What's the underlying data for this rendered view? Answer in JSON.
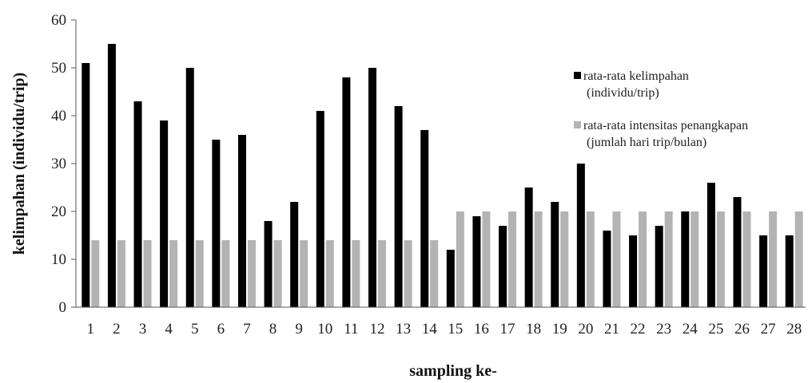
{
  "chart_data": {
    "type": "bar",
    "xlabel": "sampling ke-",
    "ylabel": "kelimpahan (individu/trip)",
    "ylim": [
      0,
      60
    ],
    "yticks": [
      0,
      10,
      20,
      30,
      40,
      50,
      60
    ],
    "grid": false,
    "legend_position": "right",
    "categories": [
      "1",
      "2",
      "3",
      "4",
      "5",
      "6",
      "7",
      "8",
      "9",
      "10",
      "11",
      "12",
      "13",
      "14",
      "15",
      "16",
      "17",
      "18",
      "19",
      "20",
      "21",
      "22",
      "23",
      "24",
      "25",
      "26",
      "27",
      "28"
    ],
    "series": [
      {
        "name": "rata-rata kelimpahan (individu/trip)",
        "legend_lines": [
          "rata-rata kelimpahan",
          "(individu/trip)"
        ],
        "color": "#000000",
        "values": [
          51,
          55,
          43,
          39,
          50,
          35,
          36,
          18,
          22,
          41,
          48,
          50,
          42,
          37,
          12,
          19,
          17,
          25,
          22,
          30,
          16,
          15,
          17,
          20,
          26,
          23,
          15,
          15
        ]
      },
      {
        "name": "rata-rata intensitas penangkapan (jumlah hari trip/bulan)",
        "legend_lines": [
          "rata-rata intensitas penangkapan",
          "(jumlah hari trip/bulan)"
        ],
        "color": "#b3b3b3",
        "values": [
          14,
          14,
          14,
          14,
          14,
          14,
          14,
          14,
          14,
          14,
          14,
          14,
          14,
          14,
          20,
          20,
          20,
          20,
          20,
          20,
          20,
          20,
          20,
          20,
          20,
          20,
          20,
          20
        ]
      }
    ]
  }
}
